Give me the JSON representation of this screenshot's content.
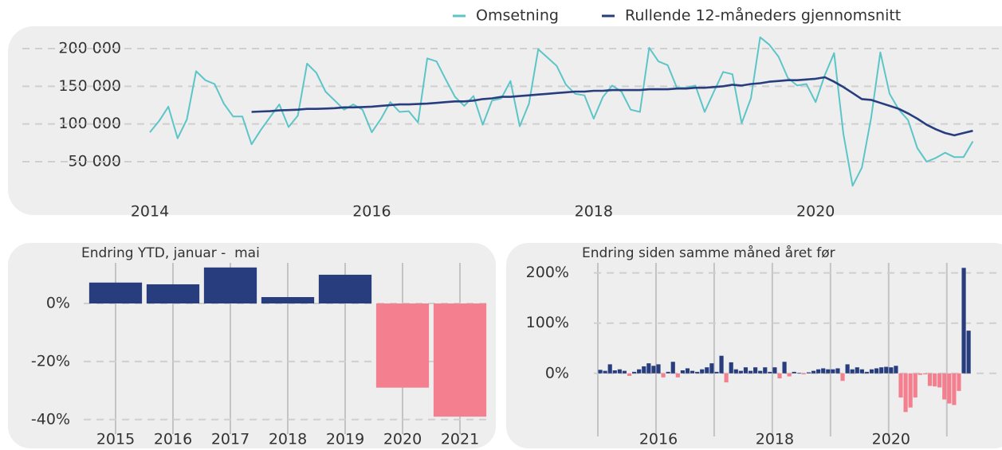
{
  "chart_data": [
    {
      "type": "line",
      "categories": [
        "2014",
        null,
        null,
        null,
        null,
        null,
        null,
        null,
        null,
        null,
        null,
        null,
        null,
        null,
        null,
        null,
        null,
        null,
        null,
        null,
        null,
        null,
        null,
        null,
        "2016",
        null,
        null,
        null,
        null,
        null,
        null,
        null,
        null,
        null,
        null,
        null,
        null,
        null,
        null,
        null,
        null,
        null,
        null,
        null,
        null,
        null,
        null,
        null,
        "2018",
        null,
        null,
        null,
        null,
        null,
        null,
        null,
        null,
        null,
        null,
        null,
        null,
        null,
        null,
        null,
        null,
        null,
        null,
        null,
        null,
        null,
        null,
        null,
        "2020",
        null,
        null,
        null,
        null,
        null,
        null,
        null,
        null,
        null,
        null,
        null,
        null,
        null,
        null,
        null,
        null,
        null
      ],
      "series": [
        {
          "name": "Omsetning",
          "color": "#5cc5c8",
          "values": [
            89000,
            104000,
            123000,
            81000,
            106000,
            170000,
            158000,
            153000,
            127000,
            110000,
            110000,
            73000,
            92000,
            109000,
            126000,
            96000,
            111000,
            180000,
            168000,
            143000,
            131000,
            119000,
            126000,
            119000,
            89000,
            107000,
            129000,
            116000,
            117000,
            102000,
            187000,
            183000,
            159000,
            136000,
            124000,
            137000,
            99000,
            131000,
            134000,
            157000,
            97000,
            127000,
            199000,
            188000,
            177000,
            152000,
            140000,
            138000,
            107000,
            136000,
            151000,
            143000,
            119000,
            116000,
            201000,
            183000,
            178000,
            148000,
            148000,
            151000,
            116000,
            143000,
            169000,
            166000,
            101000,
            134000,
            215000,
            205000,
            189000,
            161000,
            151000,
            153000,
            129000,
            165000,
            194000,
            87000,
            18000,
            42000,
            108000,
            195000,
            140000,
            119000,
            105000,
            68000,
            50000,
            55000,
            62000,
            56000,
            56000,
            77000
          ]
        },
        {
          "name": "Rullende 12-måneders gjennomsnitt",
          "color": "#273d7e",
          "values": [
            null,
            null,
            null,
            null,
            null,
            null,
            null,
            null,
            null,
            null,
            null,
            116000,
            116500,
            117000,
            118000,
            118500,
            119000,
            120000,
            120000,
            120500,
            121000,
            122000,
            122000,
            122500,
            123000,
            124000,
            125000,
            126000,
            126000,
            126500,
            127000,
            128000,
            129000,
            130000,
            130000,
            131000,
            133000,
            134000,
            136000,
            136000,
            137000,
            138000,
            139000,
            140000,
            141000,
            142000,
            143000,
            143000,
            144000,
            144000,
            145000,
            145000,
            145000,
            145000,
            146000,
            146000,
            146000,
            147000,
            147000,
            148000,
            148000,
            149000,
            150000,
            152000,
            151000,
            153000,
            154000,
            156000,
            157000,
            158000,
            158000,
            159000,
            160000,
            162000,
            156000,
            149000,
            141000,
            133000,
            132000,
            128000,
            124000,
            120000,
            114000,
            107000,
            99000,
            93000,
            88000,
            85000,
            88000,
            91000
          ]
        }
      ],
      "ylim": [
        10000,
        225000
      ],
      "yticks": [
        {
          "value": 50000,
          "label": "50 000"
        },
        {
          "value": 100000,
          "label": "100 000"
        },
        {
          "value": 150000,
          "label": "150 000"
        },
        {
          "value": 200000,
          "label": "200 000"
        }
      ],
      "grid": true,
      "legend": "top-right"
    },
    {
      "type": "bar",
      "title": "Endring YTD, januar -  mai",
      "categories": [
        "2015",
        "2016",
        "2017",
        "2018",
        "2019",
        "2020",
        "2021"
      ],
      "values": [
        7.2,
        6.6,
        12.4,
        2.2,
        9.9,
        -29,
        -39
      ],
      "positive_color": "#273d7e",
      "negative_color": "#f4808f",
      "ylim": [
        -45,
        14
      ],
      "yticks": [
        {
          "value": -40,
          "label": "-40%"
        },
        {
          "value": -20,
          "label": "-20%"
        },
        {
          "value": 0,
          "label": "0%"
        }
      ],
      "grid": true
    },
    {
      "type": "bar",
      "title": "Endring siden samme måned året før",
      "categories": [
        null,
        null,
        null,
        null,
        null,
        null,
        null,
        null,
        null,
        null,
        null,
        null,
        "2016",
        null,
        null,
        null,
        null,
        null,
        null,
        null,
        null,
        null,
        null,
        null,
        null,
        null,
        null,
        null,
        null,
        null,
        null,
        null,
        null,
        null,
        null,
        null,
        "2018",
        null,
        null,
        null,
        null,
        null,
        null,
        null,
        null,
        null,
        null,
        null,
        null,
        null,
        null,
        null,
        null,
        null,
        null,
        null,
        null,
        null,
        null,
        null,
        "2020",
        null,
        null,
        null,
        null,
        null,
        null,
        null,
        null,
        null,
        null,
        null,
        null,
        null,
        null,
        null,
        null
      ],
      "values": [
        7,
        5,
        18,
        6,
        8,
        5,
        -5,
        3,
        8,
        14,
        20,
        15,
        18,
        -8,
        3,
        23,
        -8,
        6,
        10,
        5,
        3,
        8,
        12,
        20,
        3,
        35,
        -18,
        22,
        8,
        5,
        12,
        5,
        12,
        5,
        12,
        3,
        12,
        -10,
        23,
        -6,
        3,
        1,
        -2,
        2,
        5,
        8,
        10,
        8,
        8,
        10,
        -15,
        18,
        8,
        12,
        8,
        3,
        8,
        10,
        12,
        13,
        12,
        15,
        -48,
        -77,
        -68,
        -48,
        -3,
        -2,
        -25,
        -26,
        -28,
        -52,
        -60,
        -63,
        -35,
        210,
        85
      ],
      "positive_color": "#273d7e",
      "negative_color": "#f4808f",
      "ylim": [
        -105,
        220
      ],
      "yticks": [
        {
          "value": 0,
          "label": "0%"
        },
        {
          "value": 100,
          "label": "100%"
        },
        {
          "value": 200,
          "label": "200%"
        }
      ],
      "grid": true
    }
  ]
}
